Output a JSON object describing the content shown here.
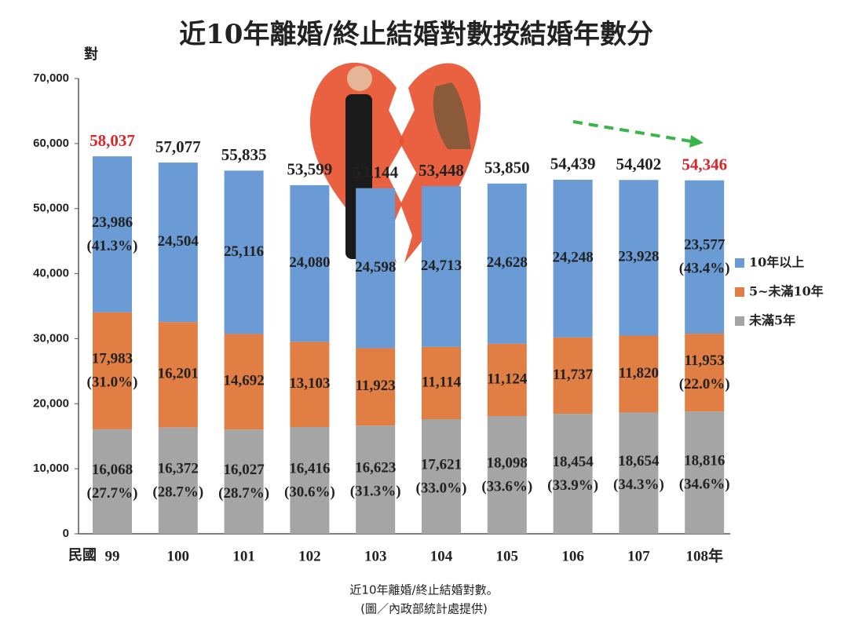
{
  "chart_data": {
    "type": "stacked-bar",
    "title": "近10年離婚/終止結婚對數按結婚年數分",
    "ylabel": "對",
    "xlabel": "民國",
    "categories": [
      "99",
      "100",
      "101",
      "102",
      "103",
      "104",
      "105",
      "106",
      "107",
      "108年"
    ],
    "series": [
      {
        "name": "未滿5年",
        "color": "#a5a5a5",
        "values": [
          16068,
          16372,
          16027,
          16416,
          16623,
          17621,
          18098,
          18454,
          18654,
          18816
        ],
        "value_labels": [
          "16,068",
          "16,372",
          "16,027",
          "16,416",
          "16,623",
          "17,621",
          "18,098",
          "18,454",
          "18,654",
          "18,816"
        ],
        "percent_labels": [
          "(27.7%)",
          "(28.7%)",
          "(28.7%)",
          "(30.6%)",
          "(31.3%)",
          "(33.0%)",
          "(33.6%)",
          "(33.9%)",
          "(34.3%)",
          "(34.6%)"
        ]
      },
      {
        "name": "5~未滿10年",
        "color": "#e07e44",
        "values": [
          17983,
          16201,
          14692,
          13103,
          11923,
          11114,
          11124,
          11737,
          11820,
          11953
        ],
        "value_labels": [
          "17,983",
          "16,201",
          "14,692",
          "13,103",
          "11,923",
          "11,114",
          "11,124",
          "11,737",
          "11,820",
          "11,953"
        ],
        "percent_labels": [
          "(31.0%)",
          null,
          null,
          null,
          null,
          null,
          null,
          null,
          null,
          "(22.0%)"
        ]
      },
      {
        "name": "10年以上",
        "color": "#6b9bd4",
        "values": [
          23986,
          24504,
          25116,
          24080,
          24598,
          24713,
          24628,
          24248,
          23928,
          23577
        ],
        "value_labels": [
          "23,986",
          "24,504",
          "25,116",
          "24,080",
          "24,598",
          "24,713",
          "24,628",
          "24,248",
          "23,928",
          "23,577"
        ],
        "percent_labels": [
          "(41.3%)",
          null,
          null,
          null,
          null,
          null,
          null,
          null,
          null,
          "(43.4%)"
        ]
      }
    ],
    "totals": [
      58037,
      57077,
      55835,
      53599,
      53144,
      53448,
      53850,
      54439,
      54402,
      54346
    ],
    "total_labels": [
      "58,037",
      "57,077",
      "55,835",
      "53,599",
      "53,144",
      "53,448",
      "53,850",
      "54,439",
      "54,402",
      "54,346"
    ],
    "total_label_colors": [
      "#d8262a",
      "#222222",
      "#222222",
      "#222222",
      "#222222",
      "#222222",
      "#222222",
      "#222222",
      "#222222",
      "#d8262a"
    ],
    "ylim": [
      0,
      70000
    ],
    "yticks": [
      0,
      {
        "value": 10000,
        "label": "10,000"
      },
      {
        "value": 20000,
        "label": "20,000"
      },
      {
        "value": 30000,
        "label": "30,000"
      },
      {
        "value": 40000,
        "label": "40,000"
      },
      {
        "value": 50000,
        "label": "50,000"
      },
      {
        "value": 60000,
        "label": "60,000"
      },
      {
        "value": 70000,
        "label": "70,000"
      }
    ],
    "grid": false,
    "legend": "right"
  },
  "caption": [
    "近10年離婚/終止結婚對數。",
    "(圖／內政部統計處提供)"
  ]
}
